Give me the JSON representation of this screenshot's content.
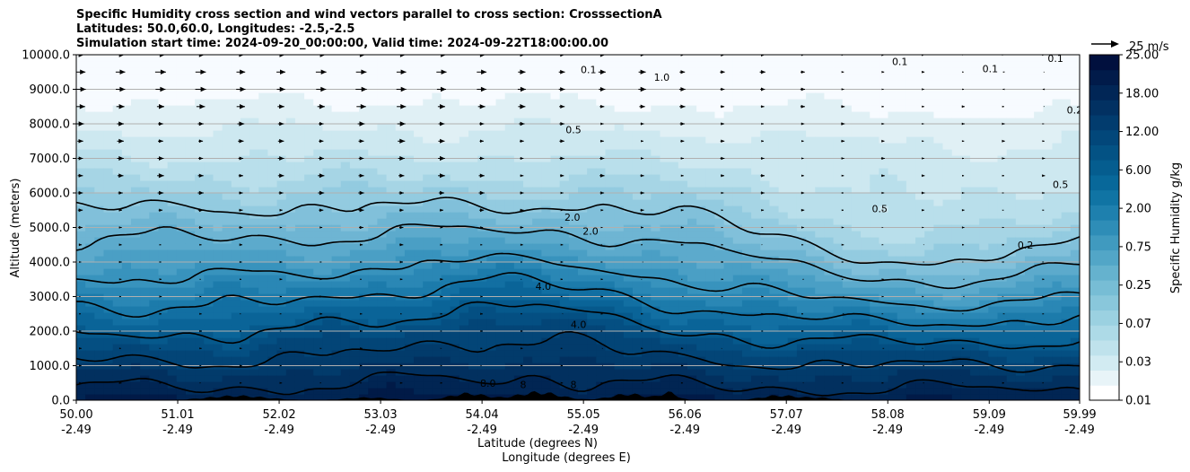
{
  "header": {
    "title_line1": "Specific Humidity cross section and wind vectors parallel to cross section: CrosssectionA",
    "title_line2": "Latitudes: 50.0,60.0, Longitudes: -2.5,-2.5",
    "title_line3": "Simulation start time: 2024-09-20_00:00:00, Valid time: 2024-09-22T18:00:00.00"
  },
  "chart_data": {
    "type": "contour",
    "title": "Specific Humidity cross section and wind vectors parallel to cross section: CrosssectionA",
    "ylabel": "Altitude (meters)",
    "xlabel_1": "Latitude (degrees N)",
    "xlabel_2": "Longitude (degrees E)",
    "ylim": [
      0,
      10000
    ],
    "xlim": [
      50.0,
      59.99
    ],
    "y_ticks": [
      "0.0",
      "1000.0",
      "2000.0",
      "3000.0",
      "4000.0",
      "5000.0",
      "6000.0",
      "7000.0",
      "8000.0",
      "9000.0",
      "10000.0"
    ],
    "x_ticks": [
      {
        "lat": "50.00",
        "lon": "-2.49"
      },
      {
        "lat": "51.01",
        "lon": "-2.49"
      },
      {
        "lat": "52.02",
        "lon": "-2.49"
      },
      {
        "lat": "53.03",
        "lon": "-2.49"
      },
      {
        "lat": "54.04",
        "lon": "-2.49"
      },
      {
        "lat": "55.05",
        "lon": "-2.49"
      },
      {
        "lat": "56.06",
        "lon": "-2.49"
      },
      {
        "lat": "57.07",
        "lon": "-2.49"
      },
      {
        "lat": "58.08",
        "lon": "-2.49"
      },
      {
        "lat": "59.09",
        "lon": "-2.49"
      },
      {
        "lat": "59.99",
        "lon": "-2.49"
      }
    ],
    "grid": "horizontal",
    "contour_levels": [
      "0.1",
      "0.2",
      "0.5",
      "1.0",
      "2.0",
      "4.0",
      "8.0"
    ],
    "contour_labels": [
      {
        "text": "0.1",
        "x": 55.1,
        "y": 9570
      },
      {
        "text": "1.0",
        "x": 55.83,
        "y": 9350
      },
      {
        "text": "0.1",
        "x": 58.2,
        "y": 9800
      },
      {
        "text": "0.1",
        "x": 59.1,
        "y": 9600
      },
      {
        "text": "0.1",
        "x": 59.75,
        "y": 9900
      },
      {
        "text": "0.2",
        "x": 59.94,
        "y": 8400
      },
      {
        "text": "0.5",
        "x": 54.95,
        "y": 7830
      },
      {
        "text": "0.5",
        "x": 59.8,
        "y": 6250
      },
      {
        "text": "0.5",
        "x": 58.0,
        "y": 5550
      },
      {
        "text": "0.2",
        "x": 59.45,
        "y": 4500
      },
      {
        "text": "2.0",
        "x": 54.94,
        "y": 5300
      },
      {
        "text": "2.0",
        "x": 55.12,
        "y": 4900
      },
      {
        "text": "4.0",
        "x": 54.65,
        "y": 3300
      },
      {
        "text": "4.0",
        "x": 55.0,
        "y": 2200
      },
      {
        "text": "8.0",
        "x": 54.1,
        "y": 500
      },
      {
        "text": "8",
        "x": 54.45,
        "y": 450
      },
      {
        "text": "8",
        "x": 54.95,
        "y": 450
      }
    ],
    "colorbar": {
      "label": "Specific Humidity g/kg",
      "tick_labels": [
        "0.01",
        "0.03",
        "0.07",
        "0.25",
        "0.75",
        "2.00",
        "6.00",
        "12.00",
        "18.00",
        "25.00"
      ]
    },
    "wind_reference": {
      "label": "25 m/s",
      "value": 25
    }
  }
}
